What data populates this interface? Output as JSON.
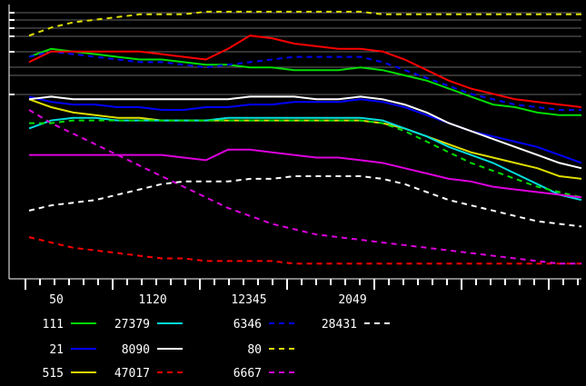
{
  "chart_data": {
    "type": "line",
    "title": "",
    "xlabel": "",
    "ylabel": "",
    "grid": "horizontal-top",
    "legend_placement": "bottom",
    "background": "#000000",
    "x_ticks": [
      "50",
      "1120",
      "12345",
      "2049"
    ],
    "x": [
      0,
      1,
      2,
      3,
      4,
      5,
      6,
      7,
      8,
      9,
      10,
      11,
      12,
      13,
      14,
      15,
      16,
      17,
      18,
      19,
      20,
      21,
      22,
      23,
      24,
      25
    ],
    "ylim": [
      0,
      100
    ],
    "series": [
      {
        "name": "111",
        "color": "#00dd00",
        "dash": "solid",
        "values": [
          82,
          85,
          84,
          83,
          82,
          81,
          81,
          80,
          79,
          79,
          78,
          78,
          77,
          77,
          77,
          78,
          77,
          75,
          73,
          70,
          67,
          64,
          63,
          61,
          60,
          60
        ]
      },
      {
        "name": "21",
        "color": "#0000ff",
        "dash": "solid",
        "values": [
          67,
          65,
          64,
          64,
          63,
          63,
          62,
          62,
          63,
          63,
          64,
          64,
          65,
          65,
          65,
          66,
          65,
          63,
          60,
          57,
          54,
          52,
          50,
          48,
          45,
          42
        ]
      },
      {
        "name": "515",
        "color": "#dddd00",
        "dash": "solid",
        "values": [
          66,
          63,
          61,
          60,
          59,
          59,
          58,
          58,
          58,
          58,
          58,
          58,
          58,
          58,
          58,
          58,
          57,
          55,
          52,
          49,
          46,
          44,
          42,
          40,
          37,
          36
        ]
      },
      {
        "name": "27379",
        "color": "#00dddd",
        "dash": "solid",
        "values": [
          55,
          58,
          59,
          59,
          58,
          58,
          58,
          58,
          58,
          59,
          59,
          59,
          59,
          59,
          59,
          59,
          58,
          55,
          52,
          48,
          45,
          42,
          38,
          34,
          30,
          28
        ]
      },
      {
        "name": "8090",
        "color": "#ffffff",
        "dash": "solid",
        "values": [
          66,
          67,
          66,
          66,
          66,
          66,
          66,
          66,
          66,
          66,
          67,
          67,
          67,
          66,
          66,
          67,
          66,
          64,
          61,
          57,
          54,
          51,
          48,
          45,
          42,
          40
        ]
      },
      {
        "name": "47017",
        "color": "#ff0000",
        "dash": "dash",
        "values": [
          14,
          12,
          10,
          9,
          8,
          7,
          6,
          6,
          5,
          5,
          5,
          5,
          4,
          4,
          4,
          4,
          4,
          4,
          4,
          4,
          4,
          4,
          4,
          4,
          4,
          4
        ]
      },
      {
        "name": "6346",
        "color": "#0000ff",
        "dash": "dash",
        "values": [
          82,
          84,
          83,
          82,
          81,
          80,
          80,
          79,
          78,
          79,
          80,
          81,
          82,
          82,
          82,
          82,
          80,
          77,
          74,
          71,
          68,
          66,
          64,
          63,
          62,
          62
        ]
      },
      {
        "name": "80",
        "color": "#dddd00",
        "dash": "dash",
        "values": [
          90,
          93,
          95,
          96,
          97,
          98,
          98,
          98,
          99,
          99,
          99,
          99,
          99,
          99,
          99,
          99,
          98,
          98,
          98,
          98,
          98,
          98,
          98,
          98,
          98,
          98
        ]
      },
      {
        "name": "6667",
        "color": "#dd00dd",
        "dash": "dash",
        "values": [
          62,
          57,
          53,
          49,
          45,
          41,
          37,
          33,
          29,
          25,
          22,
          19,
          17,
          15,
          14,
          13,
          12,
          11,
          10,
          9,
          8,
          7,
          6,
          5,
          4,
          4
        ]
      },
      {
        "name": "28431",
        "color": "#ffffff",
        "dash": "dash",
        "values": [
          24,
          26,
          27,
          28,
          30,
          32,
          34,
          35,
          35,
          35,
          36,
          36,
          37,
          37,
          37,
          37,
          36,
          34,
          31,
          28,
          26,
          24,
          22,
          20,
          19,
          18
        ]
      }
    ],
    "extra_series_unlabeled": [
      {
        "color": "#ff0000",
        "dash": "solid",
        "values": [
          80,
          84,
          84,
          84,
          84,
          84,
          83,
          82,
          81,
          85,
          90,
          89,
          87,
          86,
          85,
          85,
          84,
          81,
          77,
          73,
          70,
          68,
          66,
          65,
          64,
          63
        ]
      },
      {
        "color": "#00dd00",
        "dash": "dash",
        "values": [
          57,
          57,
          58,
          58,
          58,
          58,
          58,
          58,
          58,
          58,
          58,
          58,
          58,
          58,
          58,
          58,
          57,
          54,
          50,
          46,
          42,
          39,
          36,
          33,
          31,
          29
        ]
      },
      {
        "color": "#dd00dd",
        "dash": "solid",
        "values": [
          45,
          45,
          45,
          45,
          45,
          45,
          45,
          44,
          43,
          47,
          47,
          46,
          45,
          44,
          44,
          43,
          42,
          40,
          38,
          36,
          35,
          33,
          32,
          31,
          30,
          29
        ]
      }
    ]
  },
  "legend": [
    {
      "label": "111",
      "color": "#00dd00",
      "dash": "solid",
      "row": 0,
      "col": 0
    },
    {
      "label": "27379",
      "color": "#00dddd",
      "dash": "solid",
      "row": 0,
      "col": 1
    },
    {
      "label": "6346",
      "color": "#0000ff",
      "dash": "dash",
      "row": 0,
      "col": 2
    },
    {
      "label": "28431",
      "color": "#ffffff",
      "dash": "dash",
      "row": 0,
      "col": 3
    },
    {
      "label": "21",
      "color": "#0000ff",
      "dash": "solid",
      "row": 1,
      "col": 0
    },
    {
      "label": "8090",
      "color": "#ffffff",
      "dash": "solid",
      "row": 1,
      "col": 1
    },
    {
      "label": "80",
      "color": "#dddd00",
      "dash": "dash",
      "row": 1,
      "col": 2
    },
    {
      "label": "515",
      "color": "#dddd00",
      "dash": "solid",
      "row": 2,
      "col": 0
    },
    {
      "label": "47017",
      "color": "#ff0000",
      "dash": "dash",
      "row": 2,
      "col": 1
    },
    {
      "label": "6667",
      "color": "#dd00dd",
      "dash": "dash",
      "row": 2,
      "col": 2
    }
  ]
}
